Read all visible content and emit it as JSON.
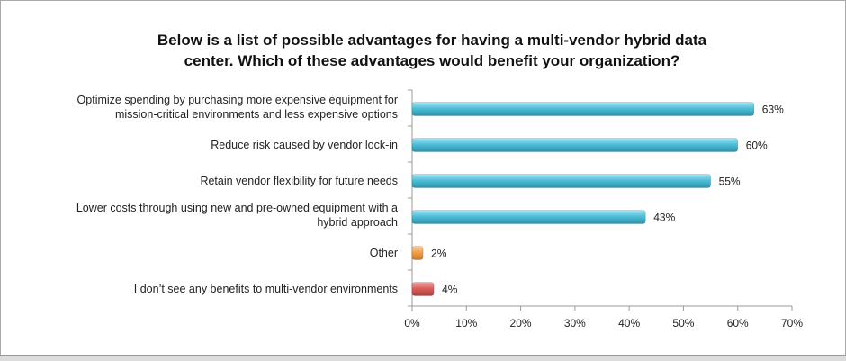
{
  "chart_data": {
    "type": "bar",
    "orientation": "horizontal",
    "title_lines": [
      "Below is a list of possible advantages for having a multi-vendor hybrid data",
      "center. Which of these advantages would benefit your organization?"
    ],
    "categories": [
      [
        "Optimize spending by purchasing more expensive equipment for",
        "mission-critical environments and less expensive options"
      ],
      [
        "Reduce risk caused by vendor lock-in"
      ],
      [
        "Retain vendor flexibility for future needs"
      ],
      [
        "Lower costs through using new and pre-owned equipment with a",
        "hybrid approach"
      ],
      [
        "Other"
      ],
      [
        "I don’t see any benefits to multi-vendor environments"
      ]
    ],
    "values": [
      63,
      60,
      55,
      43,
      2,
      4
    ],
    "value_labels": [
      "63%",
      "60%",
      "55%",
      "43%",
      "2%",
      "4%"
    ],
    "bar_colors": [
      "#4fbfd8",
      "#4fbfd8",
      "#4fbfd8",
      "#4fbfd8",
      "#f3a04a",
      "#d9605c"
    ],
    "xlim": [
      0,
      70
    ],
    "xticks": [
      0,
      10,
      20,
      30,
      40,
      50,
      60,
      70
    ],
    "xtick_labels": [
      "0%",
      "10%",
      "20%",
      "30%",
      "40%",
      "50%",
      "60%",
      "70%"
    ],
    "grid": false,
    "legend": "none"
  }
}
